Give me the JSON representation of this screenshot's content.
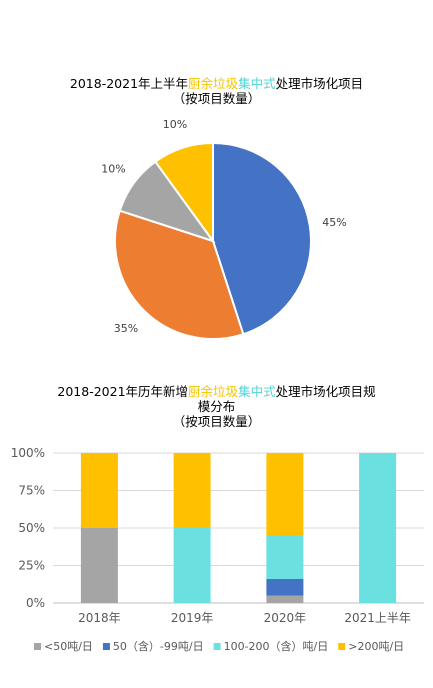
{
  "colors": {
    "blue": "#4472c4",
    "orange": "#ed7d31",
    "gray": "#a5a5a5",
    "yellow": "#ffc000",
    "cyan": "#6ae0e0"
  },
  "chart_data": [
    {
      "type": "pie",
      "title": {
        "prefix": "2018-2021年上半年",
        "highlight_yellow": "厨余垃圾",
        "highlight_cyan": "集中式",
        "suffix": "处理市场化项目",
        "line2": "（按项目数量）"
      },
      "slices": [
        {
          "label": "45%",
          "value": 45,
          "color": "#4472c4"
        },
        {
          "label": "35%",
          "value": 35,
          "color": "#ed7d31"
        },
        {
          "label": "10%",
          "value": 10,
          "color": "#a5a5a5"
        },
        {
          "label": "10%",
          "value": 10,
          "color": "#ffc000"
        }
      ]
    },
    {
      "type": "bar",
      "stacked": true,
      "title": {
        "prefix": "2018-2021年历年新增",
        "highlight_yellow": "厨余垃圾",
        "highlight_cyan": "集中式",
        "suffix": "处理市场化项目规",
        "line2": "模分布",
        "line3": "（按项目数量）"
      },
      "categories": [
        "2018年",
        "2019年",
        "2020年",
        "2021上半年"
      ],
      "yticks": [
        "0%",
        "25%",
        "50%",
        "75%",
        "100%"
      ],
      "ylim": [
        0,
        100
      ],
      "grid": true,
      "legend_position": "bottom",
      "series": [
        {
          "name": "<50吨/日",
          "color": "#a5a5a5",
          "values": [
            50,
            0,
            5,
            0
          ]
        },
        {
          "name": "50（含）-99吨/日",
          "color": "#4472c4",
          "values": [
            0,
            0,
            11,
            0
          ]
        },
        {
          "name": "100-200（含）吨/日",
          "color": "#6ae0e0",
          "values": [
            0,
            50,
            29,
            100
          ]
        },
        {
          "name": ">200吨/日",
          "color": "#ffc000",
          "values": [
            50,
            50,
            55,
            0
          ]
        }
      ]
    }
  ]
}
